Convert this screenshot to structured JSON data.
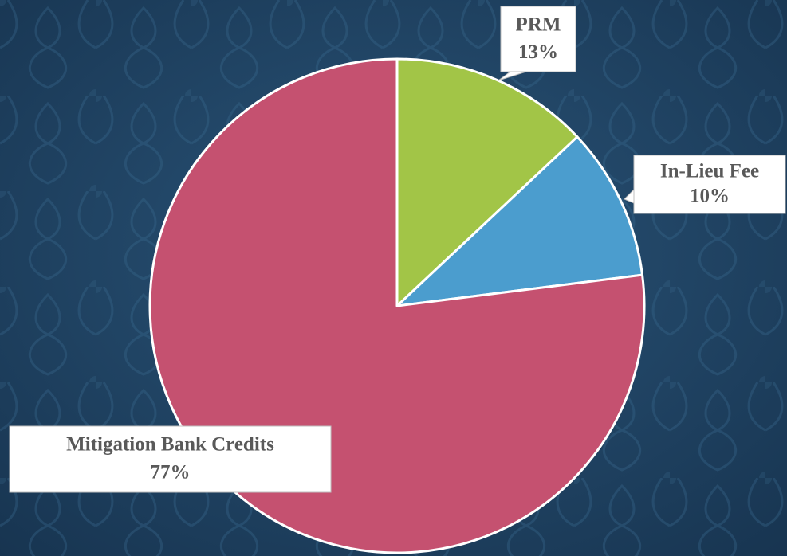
{
  "chart_data": {
    "type": "pie",
    "categories": [
      "PRM",
      "In-Lieu Fee",
      "Mitigation Bank Credits"
    ],
    "values": [
      13,
      10,
      77
    ],
    "value_labels": [
      "13%",
      "10%",
      "77%"
    ],
    "colors": [
      "#a2c547",
      "#4b9dce",
      "#c55170"
    ]
  }
}
